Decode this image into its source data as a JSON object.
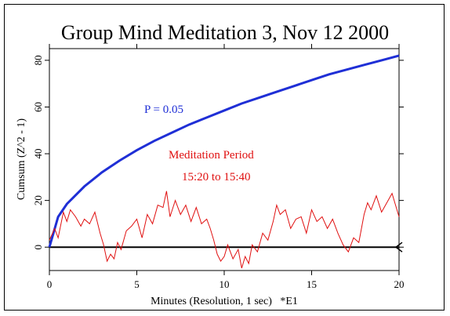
{
  "chart_data": {
    "type": "line",
    "title": "Group Mind Meditation 3, Nov 12 2000",
    "xlabel": "Minutes (Resolution, 1 sec)   *E1",
    "ylabel": "Cumsum (Z^2 - 1)",
    "xlim": [
      0,
      20
    ],
    "ylim": [
      -10,
      85
    ],
    "x_ticks": [
      0,
      5,
      10,
      15,
      20
    ],
    "y_ticks": [
      0,
      20,
      40,
      60,
      80
    ],
    "annotations": {
      "p_label": "P = 0.05",
      "period_line1": "Meditation Period",
      "period_line2": "15:20 to 15:40"
    },
    "colors": {
      "p_curve": "#1f2fd6",
      "series": "#e01010",
      "baseline": "#000000"
    },
    "p_curve": {
      "x": [
        0,
        0.5,
        1,
        2,
        3,
        4,
        5,
        6,
        7,
        8,
        9,
        10,
        11,
        12,
        13,
        14,
        15,
        16,
        17,
        18,
        19,
        20
      ],
      "y": [
        0,
        13,
        18.5,
        26,
        32,
        37,
        41.5,
        45.5,
        49,
        52.5,
        55.5,
        58.5,
        61.5,
        64,
        66.5,
        69,
        71.5,
        74,
        76,
        78,
        80,
        82
      ]
    },
    "series": [
      {
        "x": [
          0,
          0.3,
          0.5,
          0.8,
          1.0,
          1.2,
          1.5,
          1.8,
          2.0,
          2.3,
          2.6,
          2.9,
          3.1,
          3.3,
          3.5,
          3.7,
          3.9,
          4.1,
          4.4,
          4.7,
          5.0,
          5.3,
          5.6,
          5.9,
          6.2,
          6.5,
          6.7,
          6.9,
          7.2,
          7.5,
          7.8,
          8.1,
          8.4,
          8.7,
          9.0,
          9.2,
          9.4,
          9.6,
          9.8,
          10.0,
          10.2,
          10.5,
          10.8,
          11.0,
          11.2,
          11.4,
          11.6,
          11.9,
          12.2,
          12.5,
          12.8,
          13.0,
          13.2,
          13.5,
          13.8,
          14.1,
          14.4,
          14.7,
          15.0,
          15.3,
          15.6,
          15.9,
          16.2,
          16.5,
          16.8,
          17.1,
          17.4,
          17.7,
          18.0,
          18.2,
          18.4,
          18.7,
          19.0,
          19.3,
          19.6,
          19.8,
          20.0
        ],
        "y": [
          3,
          8,
          4,
          15,
          11,
          16,
          13,
          9,
          12,
          10,
          15,
          6,
          1,
          -6,
          -3,
          -5,
          2,
          -1,
          7,
          9,
          12,
          4,
          14,
          10,
          18,
          17,
          24,
          13,
          20,
          14,
          18,
          11,
          17,
          10,
          12,
          8,
          3,
          -3,
          -6,
          -4,
          1,
          -5,
          -1,
          -9,
          -4,
          -7,
          1,
          -2,
          6,
          3,
          11,
          18,
          14,
          16,
          8,
          12,
          13,
          6,
          16,
          11,
          13,
          8,
          12,
          6,
          1,
          -2,
          4,
          2,
          14,
          19,
          16,
          22,
          15,
          19,
          23,
          18,
          13
        ]
      }
    ]
  }
}
